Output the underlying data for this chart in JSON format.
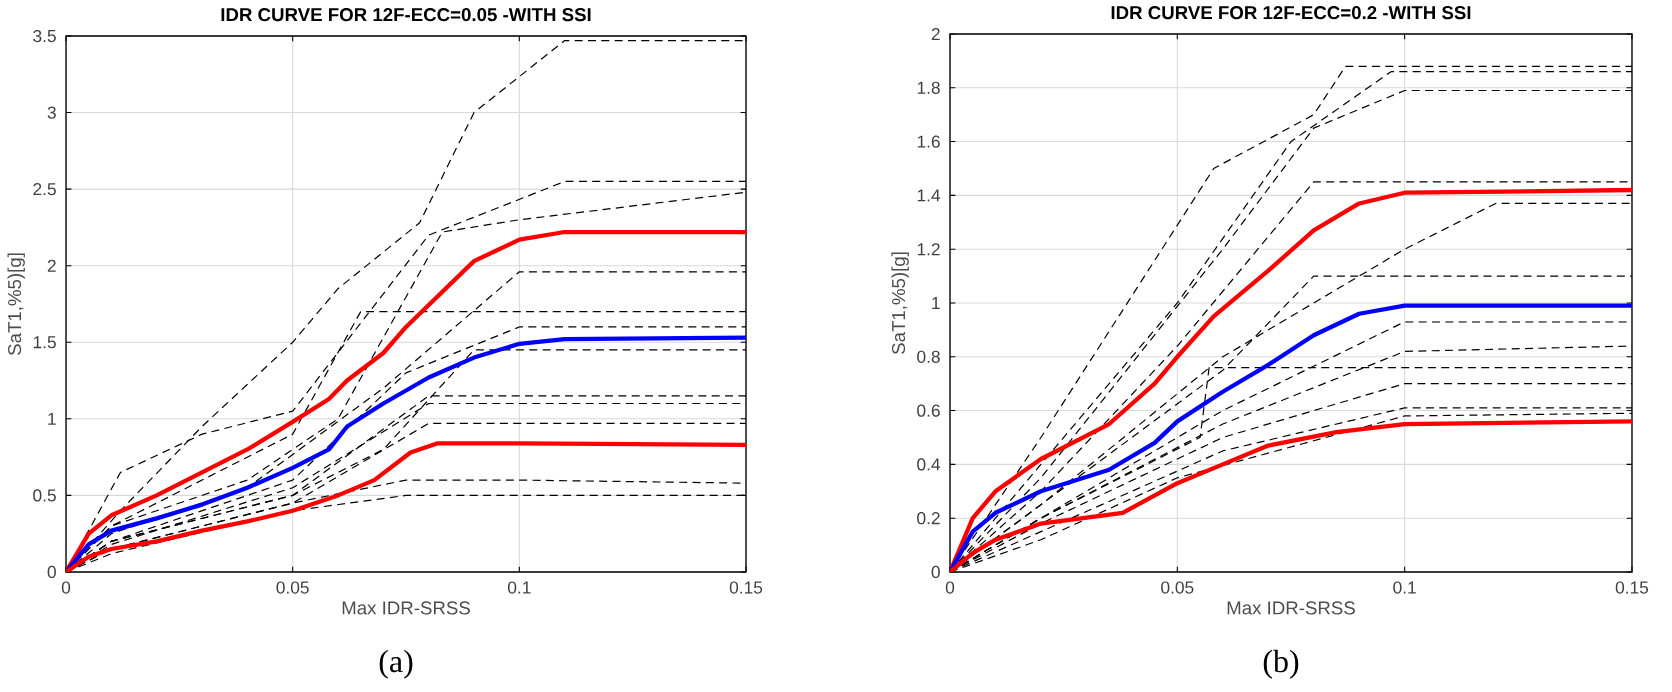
{
  "chart_data": [
    {
      "type": "line",
      "title": "IDR CURVE FOR 12F-ECC=0.05 -WITH SSI",
      "xlabel": "Max IDR-SRSS",
      "ylabel": "SaT1,%5)[g]",
      "annotations": [
        "(a)"
      ],
      "grid": true,
      "xlim": [
        0,
        0.15
      ],
      "xticks": [
        0,
        0.05,
        0.1,
        0.15
      ],
      "ylim": [
        0,
        3.5
      ],
      "yticks": [
        0,
        0.5,
        1,
        1.5,
        2,
        2.5,
        3,
        3.5
      ],
      "series": [
        {
          "color": "#000000",
          "line_style": "dashed",
          "x": [
            0,
            0.012,
            0.03,
            0.05,
            0.06,
            0.078,
            0.09,
            0.11,
            0.15
          ],
          "values": [
            0,
            0.4,
            0.95,
            1.5,
            1.85,
            2.28,
            3.0,
            3.47,
            3.47
          ]
        },
        {
          "color": "#000000",
          "line_style": "dashed",
          "x": [
            0,
            0.012,
            0.03,
            0.05,
            0.08,
            0.11,
            0.15
          ],
          "values": [
            0,
            0.65,
            0.9,
            1.05,
            2.2,
            2.55,
            2.55
          ]
        },
        {
          "color": "#000000",
          "line_style": "dashed",
          "x": [
            0,
            0.01,
            0.04,
            0.06,
            0.083,
            0.1,
            0.15
          ],
          "values": [
            0,
            0.3,
            0.6,
            1.0,
            2.22,
            2.3,
            2.48
          ]
        },
        {
          "color": "#000000",
          "line_style": "dashed",
          "x": [
            0,
            0.01,
            0.05,
            0.065,
            0.15
          ],
          "values": [
            0,
            0.3,
            0.9,
            1.7,
            1.7
          ]
        },
        {
          "color": "#000000",
          "line_style": "dashed",
          "x": [
            0,
            0.01,
            0.04,
            0.07,
            0.1,
            0.15
          ],
          "values": [
            0,
            0.25,
            0.55,
            1.2,
            1.96,
            1.96
          ]
        },
        {
          "color": "#000000",
          "line_style": "dashed",
          "x": [
            0,
            0.01,
            0.05,
            0.075,
            0.1,
            0.15
          ],
          "values": [
            0,
            0.2,
            0.6,
            1.3,
            1.6,
            1.6
          ]
        },
        {
          "color": "#000000",
          "line_style": "dashed",
          "x": [
            0,
            0.01,
            0.05,
            0.08,
            0.15
          ],
          "values": [
            0,
            0.2,
            0.5,
            1.15,
            1.15
          ]
        },
        {
          "color": "#000000",
          "line_style": "dashed",
          "x": [
            0,
            0.01,
            0.05,
            0.08,
            0.15
          ],
          "values": [
            0,
            0.15,
            0.45,
            0.97,
            0.97
          ]
        },
        {
          "color": "#000000",
          "line_style": "dashed",
          "x": [
            0,
            0.01,
            0.05,
            0.075,
            0.1,
            0.15
          ],
          "values": [
            0,
            0.15,
            0.45,
            0.6,
            0.6,
            0.58
          ]
        },
        {
          "color": "#000000",
          "line_style": "dashed",
          "x": [
            0,
            0.01,
            0.05,
            0.075,
            0.15
          ],
          "values": [
            0,
            0.12,
            0.4,
            0.5,
            0.5
          ]
        },
        {
          "color": "#000000",
          "line_style": "dashed",
          "x": [
            0,
            0.01,
            0.05,
            0.07,
            0.09,
            0.15
          ],
          "values": [
            0,
            0.2,
            0.5,
            0.8,
            1.45,
            1.45
          ]
        },
        {
          "color": "#000000",
          "line_style": "dashed",
          "x": [
            0,
            0.01,
            0.05,
            0.08,
            0.15
          ],
          "values": [
            0,
            0.18,
            0.55,
            1.1,
            1.1
          ]
        },
        {
          "color": "#ff0000",
          "line_style": "solid",
          "x": [
            0,
            0.005,
            0.01,
            0.02,
            0.03,
            0.04,
            0.05,
            0.058,
            0.062,
            0.07,
            0.075,
            0.082,
            0.09,
            0.1,
            0.11,
            0.15
          ],
          "values": [
            0,
            0.25,
            0.37,
            0.5,
            0.65,
            0.8,
            0.98,
            1.13,
            1.25,
            1.43,
            1.6,
            1.8,
            2.03,
            2.17,
            2.22,
            2.22
          ]
        },
        {
          "color": "#0000ff",
          "line_style": "solid",
          "x": [
            0,
            0.005,
            0.01,
            0.02,
            0.03,
            0.04,
            0.05,
            0.058,
            0.062,
            0.07,
            0.08,
            0.09,
            0.1,
            0.11,
            0.15
          ],
          "values": [
            0,
            0.18,
            0.27,
            0.35,
            0.44,
            0.55,
            0.68,
            0.8,
            0.95,
            1.1,
            1.27,
            1.4,
            1.49,
            1.52,
            1.53
          ]
        },
        {
          "color": "#ff0000",
          "line_style": "solid",
          "x": [
            0,
            0.005,
            0.01,
            0.02,
            0.03,
            0.04,
            0.05,
            0.06,
            0.068,
            0.076,
            0.082,
            0.1,
            0.15
          ],
          "values": [
            0,
            0.1,
            0.15,
            0.2,
            0.27,
            0.33,
            0.4,
            0.5,
            0.6,
            0.78,
            0.84,
            0.84,
            0.83
          ]
        }
      ]
    },
    {
      "type": "line",
      "title": "IDR CURVE FOR 12F-ECC=0.2 -WITH SSI",
      "xlabel": "Max IDR-SRSS",
      "ylabel": "SaT1,%5)[g]",
      "annotations": [
        "(b)"
      ],
      "grid": true,
      "xlim": [
        0,
        0.15
      ],
      "xticks": [
        0,
        0.05,
        0.1,
        0.15
      ],
      "ylim": [
        0,
        2
      ],
      "yticks": [
        0,
        0.2,
        0.4,
        0.6,
        0.8,
        1,
        1.2,
        1.4,
        1.6,
        1.8,
        2
      ],
      "series": [
        {
          "color": "#000000",
          "line_style": "dashed",
          "x": [
            0,
            0.02,
            0.058,
            0.08,
            0.087,
            0.15
          ],
          "values": [
            0,
            0.5,
            1.5,
            1.7,
            1.88,
            1.88
          ]
        },
        {
          "color": "#000000",
          "line_style": "dashed",
          "x": [
            0,
            0.02,
            0.05,
            0.075,
            0.097,
            0.15
          ],
          "values": [
            0,
            0.4,
            1.0,
            1.6,
            1.86,
            1.86
          ]
        },
        {
          "color": "#000000",
          "line_style": "dashed",
          "x": [
            0,
            0.02,
            0.06,
            0.08,
            0.1,
            0.15
          ],
          "values": [
            0,
            0.35,
            1.2,
            1.65,
            1.79,
            1.79
          ]
        },
        {
          "color": "#000000",
          "line_style": "dashed",
          "x": [
            0,
            0.02,
            0.05,
            0.08,
            0.15
          ],
          "values": [
            0,
            0.3,
            0.84,
            1.45,
            1.45
          ]
        },
        {
          "color": "#000000",
          "line_style": "dashed",
          "x": [
            0,
            0.02,
            0.06,
            0.1,
            0.12,
            0.15
          ],
          "values": [
            0,
            0.25,
            0.8,
            1.2,
            1.37,
            1.37
          ]
        },
        {
          "color": "#000000",
          "line_style": "dashed",
          "x": [
            0,
            0.02,
            0.06,
            0.08,
            0.15
          ],
          "values": [
            0,
            0.25,
            0.75,
            1.1,
            1.1
          ]
        },
        {
          "color": "#000000",
          "line_style": "dashed",
          "x": [
            0,
            0.02,
            0.06,
            0.1,
            0.15
          ],
          "values": [
            0,
            0.2,
            0.6,
            0.93,
            0.93
          ]
        },
        {
          "color": "#000000",
          "line_style": "dashed",
          "x": [
            0,
            0.02,
            0.06,
            0.1,
            0.15
          ],
          "values": [
            0,
            0.2,
            0.55,
            0.82,
            0.84
          ]
        },
        {
          "color": "#000000",
          "line_style": "dashed",
          "x": [
            0,
            0.02,
            0.055,
            0.057,
            0.15
          ],
          "values": [
            0,
            0.2,
            0.5,
            0.76,
            0.76
          ]
        },
        {
          "color": "#000000",
          "line_style": "dashed",
          "x": [
            0,
            0.02,
            0.06,
            0.1,
            0.15
          ],
          "values": [
            0,
            0.18,
            0.5,
            0.7,
            0.7
          ]
        },
        {
          "color": "#000000",
          "line_style": "dashed",
          "x": [
            0,
            0.02,
            0.06,
            0.1,
            0.15
          ],
          "values": [
            0,
            0.15,
            0.45,
            0.61,
            0.61
          ]
        },
        {
          "color": "#000000",
          "line_style": "dashed",
          "x": [
            0,
            0.02,
            0.05,
            0.1,
            0.15
          ],
          "values": [
            0,
            0.12,
            0.35,
            0.58,
            0.59
          ]
        },
        {
          "color": "#ff0000",
          "line_style": "solid",
          "x": [
            0,
            0.005,
            0.01,
            0.02,
            0.035,
            0.045,
            0.05,
            0.058,
            0.07,
            0.08,
            0.09,
            0.1,
            0.15
          ],
          "values": [
            0,
            0.2,
            0.3,
            0.42,
            0.55,
            0.7,
            0.8,
            0.95,
            1.12,
            1.27,
            1.37,
            1.41,
            1.42
          ]
        },
        {
          "color": "#0000ff",
          "line_style": "solid",
          "x": [
            0,
            0.005,
            0.01,
            0.02,
            0.035,
            0.045,
            0.05,
            0.06,
            0.07,
            0.08,
            0.09,
            0.1,
            0.15
          ],
          "values": [
            0,
            0.15,
            0.22,
            0.3,
            0.38,
            0.48,
            0.56,
            0.67,
            0.77,
            0.88,
            0.96,
            0.99,
            0.99
          ]
        },
        {
          "color": "#ff0000",
          "line_style": "solid",
          "x": [
            0,
            0.005,
            0.01,
            0.02,
            0.038,
            0.05,
            0.06,
            0.07,
            0.085,
            0.1,
            0.15
          ],
          "values": [
            0,
            0.07,
            0.12,
            0.18,
            0.22,
            0.33,
            0.4,
            0.47,
            0.52,
            0.55,
            0.56
          ]
        }
      ]
    }
  ]
}
